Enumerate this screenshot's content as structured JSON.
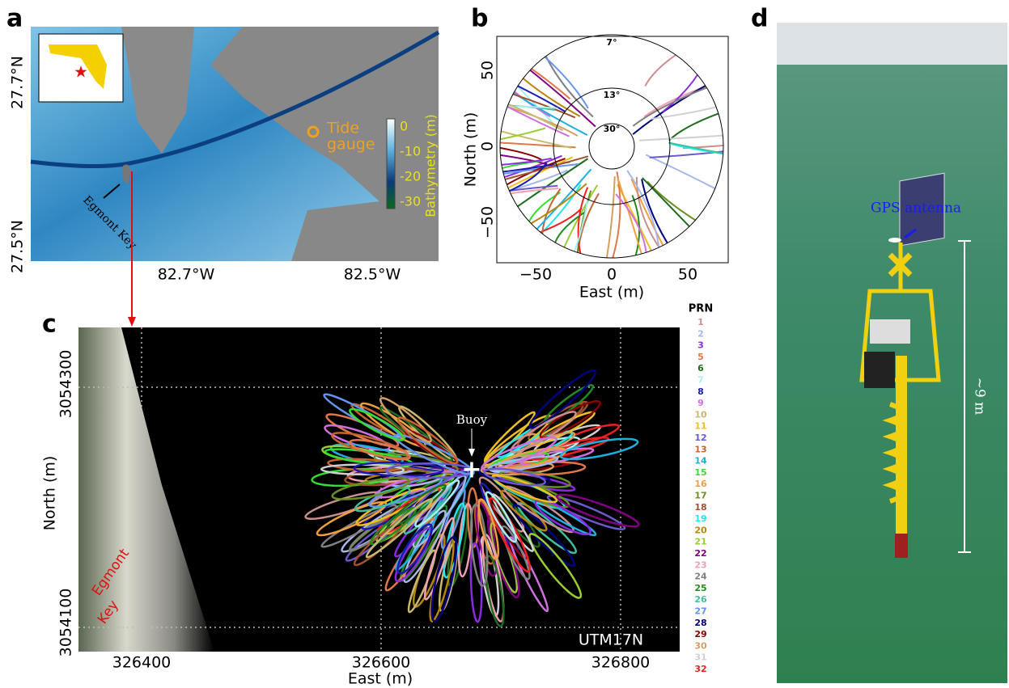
{
  "panels": {
    "a": {
      "label": "a",
      "yticks": [
        "27.7°N",
        "27.5°N"
      ],
      "xticks": [
        "82.7°W",
        "82.5°W"
      ],
      "tide_gauge": [
        "Tide",
        "gauge"
      ],
      "egmont": "Egmont Key",
      "colorbar": {
        "title": "Bathymetry (m)",
        "ticks": [
          "0",
          "-10",
          "-20",
          "-30"
        ]
      }
    },
    "b": {
      "label": "b",
      "xlabel": "East (m)",
      "ylabel": "North (m)",
      "xticks": [
        "−50",
        "0",
        "50"
      ],
      "yticks": [
        "50",
        "0",
        "−50"
      ],
      "rings": [
        "7°",
        "13°",
        "30°"
      ]
    },
    "c": {
      "label": "c",
      "xlabel": "East (m)",
      "ylabel": "North (m)",
      "xticks": [
        "326400",
        "326600",
        "326800"
      ],
      "yticks": [
        "3054300",
        "3054100"
      ],
      "buoy": "Buoy",
      "egmont": [
        "Egmont",
        "Key"
      ],
      "utm": "UTM17N",
      "prn_title": "PRN",
      "prn": [
        {
          "label": "1",
          "color": "#c98f8f"
        },
        {
          "label": "2",
          "color": "#a6b8e8"
        },
        {
          "label": "3",
          "color": "#8a2be2"
        },
        {
          "label": "5",
          "color": "#e0784a"
        },
        {
          "label": "6",
          "color": "#1f6b1f"
        },
        {
          "label": "7",
          "color": "#a8f0f0"
        },
        {
          "label": "8",
          "color": "#1a1ab0"
        },
        {
          "label": "9",
          "color": "#d070e0"
        },
        {
          "label": "10",
          "color": "#c8b870"
        },
        {
          "label": "11",
          "color": "#f0c020"
        },
        {
          "label": "12",
          "color": "#6a5acd"
        },
        {
          "label": "13",
          "color": "#c86432"
        },
        {
          "label": "14",
          "color": "#20b0e0"
        },
        {
          "label": "15",
          "color": "#30e030"
        },
        {
          "label": "16",
          "color": "#f0a040"
        },
        {
          "label": "17",
          "color": "#6b8e23"
        },
        {
          "label": "18",
          "color": "#a0522d"
        },
        {
          "label": "19",
          "color": "#20e8f0"
        },
        {
          "label": "20",
          "color": "#b8860b"
        },
        {
          "label": "21",
          "color": "#9acd32"
        },
        {
          "label": "22",
          "color": "#800080"
        },
        {
          "label": "23",
          "color": "#f0a0b0"
        },
        {
          "label": "24",
          "color": "#808080"
        },
        {
          "label": "25",
          "color": "#228b22"
        },
        {
          "label": "26",
          "color": "#40c0a0"
        },
        {
          "label": "27",
          "color": "#6495ed"
        },
        {
          "label": "28",
          "color": "#000080"
        },
        {
          "label": "29",
          "color": "#8b0000"
        },
        {
          "label": "30",
          "color": "#d2a060"
        },
        {
          "label": "31",
          "color": "#d0d0d0"
        },
        {
          "label": "32",
          "color": "#f02020"
        }
      ]
    },
    "d": {
      "label": "d",
      "antenna": "GPS antenna",
      "height": "~9 m"
    }
  }
}
